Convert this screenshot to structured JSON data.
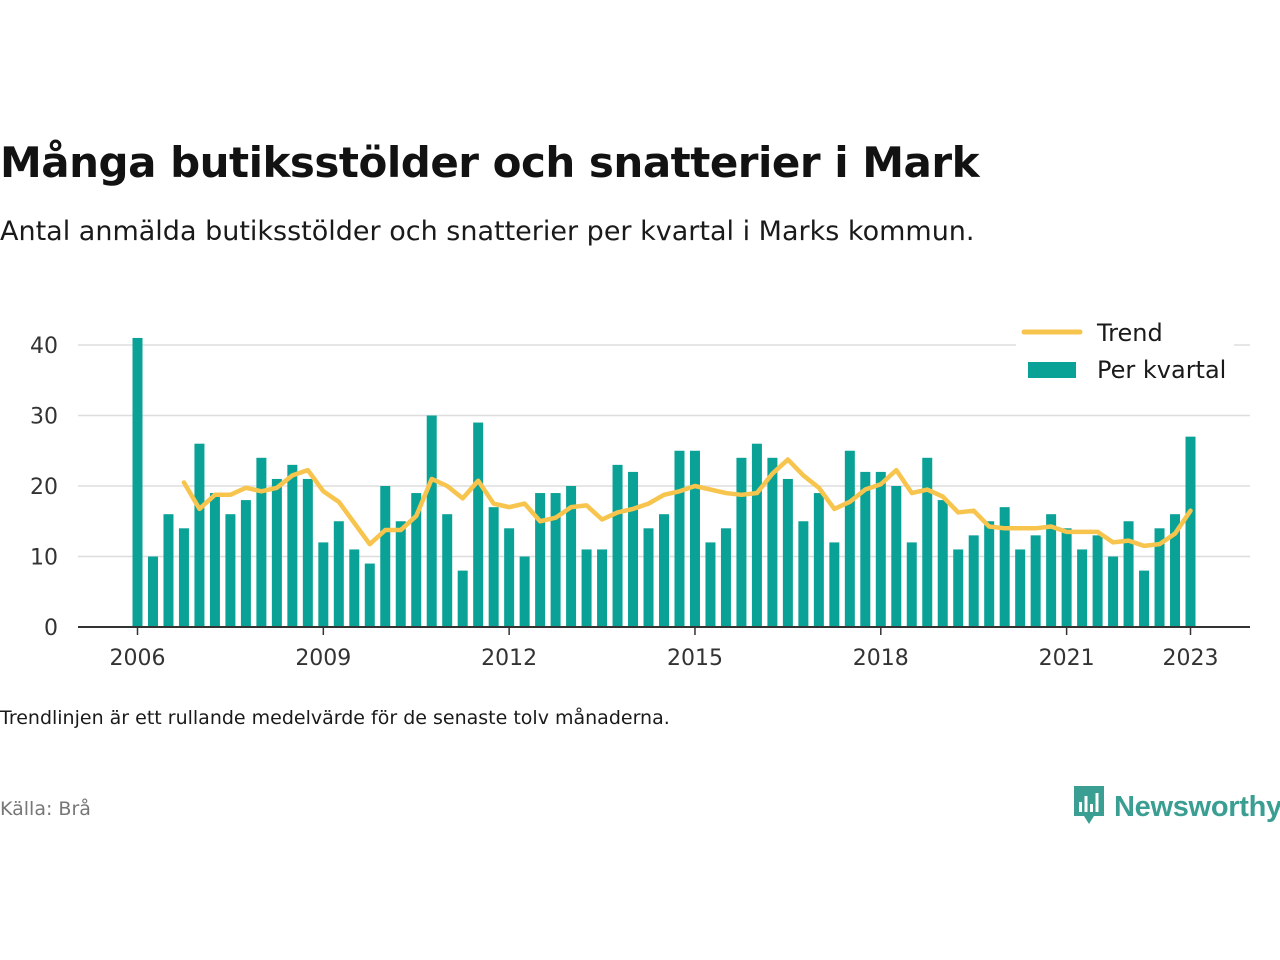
{
  "title": "Många butiksstölder och snatterier i Mark",
  "subtitle": "Antal anmälda butiksstölder och snatterier per kvartal i Marks kommun.",
  "note": "Trendlinjen är ett rullande medelvärde för de senaste tolv månaderna.",
  "source": "Källa: Brå",
  "brand": {
    "name": "Newsworthy",
    "icon": "newsworthy-bar-chart-icon",
    "color": "#3a9e92"
  },
  "colors": {
    "bars": "#0aa296",
    "trend": "#f7c44d",
    "grid": "#dddddd",
    "axis": "#333333"
  },
  "chart_data": {
    "type": "bar",
    "title": "Många butiksstölder och snatterier i Mark",
    "xlabel": "",
    "ylabel": "",
    "ylim": [
      0,
      42
    ],
    "yticks": [
      0,
      10,
      20,
      30,
      40
    ],
    "xtick_labels": [
      "2006",
      "2009",
      "2012",
      "2015",
      "2018",
      "2021",
      "2023"
    ],
    "grid": true,
    "legend_position": "top-right",
    "categories": [
      "2006 Q1",
      "2006 Q2",
      "2006 Q3",
      "2006 Q4",
      "2007 Q1",
      "2007 Q2",
      "2007 Q3",
      "2007 Q4",
      "2008 Q1",
      "2008 Q2",
      "2008 Q3",
      "2008 Q4",
      "2009 Q1",
      "2009 Q2",
      "2009 Q3",
      "2009 Q4",
      "2010 Q1",
      "2010 Q2",
      "2010 Q3",
      "2010 Q4",
      "2011 Q1",
      "2011 Q2",
      "2011 Q3",
      "2011 Q4",
      "2012 Q1",
      "2012 Q2",
      "2012 Q3",
      "2012 Q4",
      "2013 Q1",
      "2013 Q2",
      "2013 Q3",
      "2013 Q4",
      "2014 Q1",
      "2014 Q2",
      "2014 Q3",
      "2014 Q4",
      "2015 Q1",
      "2015 Q2",
      "2015 Q3",
      "2015 Q4",
      "2016 Q1",
      "2016 Q2",
      "2016 Q3",
      "2016 Q4",
      "2017 Q1",
      "2017 Q2",
      "2017 Q3",
      "2017 Q4",
      "2018 Q1",
      "2018 Q2",
      "2018 Q3",
      "2018 Q4",
      "2019 Q1",
      "2019 Q2",
      "2019 Q3",
      "2019 Q4",
      "2020 Q1",
      "2020 Q2",
      "2020 Q3",
      "2020 Q4",
      "2021 Q1",
      "2021 Q2",
      "2021 Q3",
      "2021 Q4",
      "2022 Q1",
      "2022 Q2",
      "2022 Q3",
      "2022 Q4",
      "2023 Q1"
    ],
    "series": [
      {
        "name": "Per kvartal",
        "type": "bar",
        "values": [
          41,
          10,
          16,
          14,
          26,
          19,
          16,
          18,
          24,
          21,
          23,
          21,
          12,
          15,
          11,
          9,
          20,
          15,
          19,
          30,
          16,
          8,
          29,
          17,
          14,
          10,
          19,
          19,
          20,
          11,
          11,
          23,
          22,
          14,
          16,
          25,
          25,
          12,
          14,
          24,
          26,
          24,
          21,
          15,
          19,
          12,
          25,
          22,
          22,
          20,
          12,
          24,
          18,
          11,
          13,
          15,
          17,
          11,
          13,
          16,
          14,
          11,
          13,
          10,
          15,
          8,
          14,
          16,
          27
        ]
      },
      {
        "name": "Trend",
        "type": "line",
        "values": [
          null,
          null,
          null,
          20.5,
          16.75,
          18.75,
          18.75,
          19.75,
          19.25,
          19.75,
          21.5,
          22.25,
          19.25,
          17.75,
          14.75,
          11.75,
          13.75,
          13.75,
          15.75,
          21,
          20,
          18.25,
          20.75,
          17.5,
          17,
          17.5,
          15,
          15.5,
          17,
          17.25,
          15.25,
          16.25,
          16.75,
          17.5,
          18.75,
          19.25,
          20,
          19.5,
          19,
          18.75,
          19,
          21.75,
          23.75,
          21.5,
          19.75,
          16.75,
          17.75,
          19.5,
          20.25,
          22.25,
          19,
          19.5,
          18.5,
          16.25,
          16.5,
          14.25,
          14,
          14,
          14,
          14.25,
          13.5,
          13.5,
          13.5,
          12,
          12.25,
          11.5,
          11.75,
          13.25,
          16.5
        ]
      }
    ]
  }
}
